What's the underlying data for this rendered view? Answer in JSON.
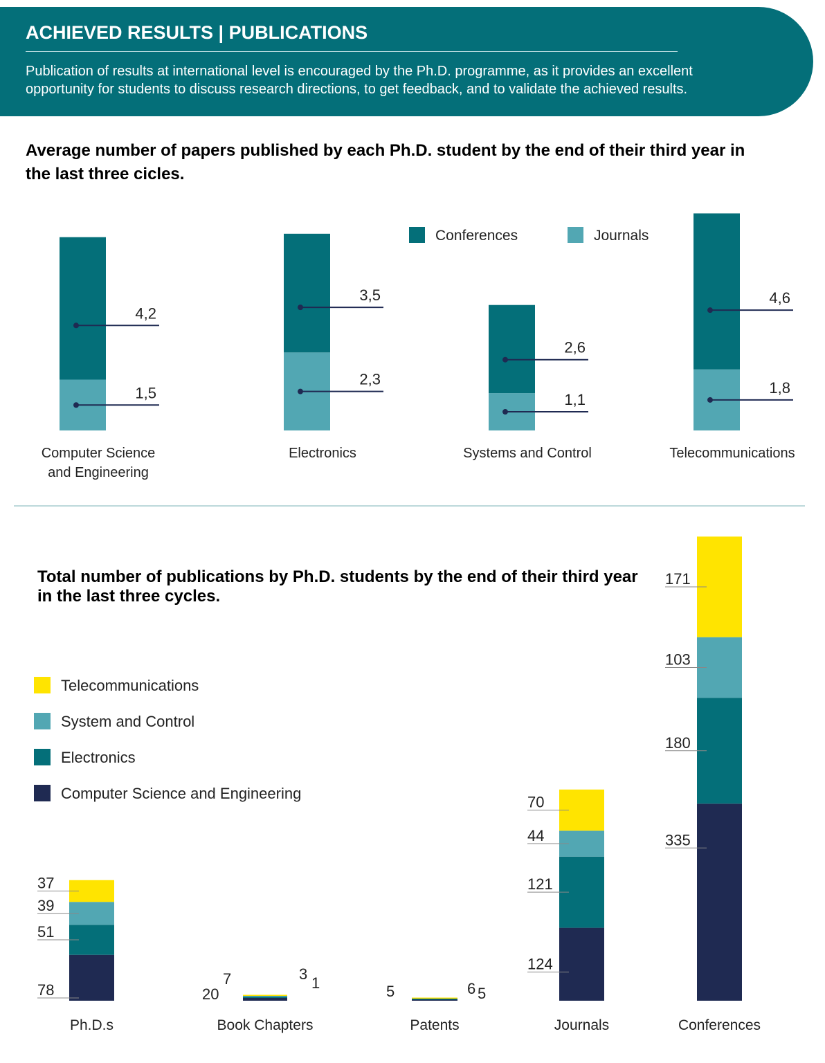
{
  "header": {
    "title": "ACHIEVED RESULTS | PUBLICATIONS",
    "description": "Publication of results at international level is encouraged by the Ph.D. programme, as it provides  an excellent opportunity for students to discuss research directions, to get feedback, and to validate the achieved results."
  },
  "colors": {
    "header": "#046f79",
    "conferences": "#046f79",
    "journals": "#52a7b3",
    "cse": "#1f2a52",
    "electronics": "#046f79",
    "system": "#52a7b3",
    "telecom": "#ffe400"
  },
  "chart_data": [
    {
      "type": "bar",
      "stacked": true,
      "title": "Average number of papers published by each Ph.D. student by the end of their third year in the last three cicles.",
      "categories": [
        "Computer Science and Engineering",
        "Electronics",
        "Systems and Control",
        "Telecommunications"
      ],
      "series": [
        {
          "name": "Journals",
          "values": [
            1.5,
            2.3,
            1.1,
            1.8
          ],
          "labels": [
            "1,5",
            "2,3",
            "1,1",
            "1,8"
          ]
        },
        {
          "name": "Conferences",
          "values": [
            4.2,
            3.5,
            2.6,
            4.6
          ],
          "labels": [
            "4,2",
            "3,5",
            "2,6",
            "4,6"
          ]
        }
      ],
      "legend": "top-right"
    },
    {
      "type": "bar",
      "stacked": true,
      "title": "Total number of publications by Ph.D. students by the end of their third year in the last three cycles.",
      "categories": [
        "Ph.D.s",
        "Book Chapters",
        "Patents",
        "Journals",
        "Conferences"
      ],
      "series": [
        {
          "name": "Computer Science and Engineering",
          "values": [
            78,
            20,
            5,
            124,
            335
          ]
        },
        {
          "name": "Electronics",
          "values": [
            51,
            1,
            5,
            121,
            180
          ]
        },
        {
          "name": "System and Control",
          "values": [
            39,
            7,
            0,
            44,
            103
          ]
        },
        {
          "name": "Telecommunications",
          "values": [
            37,
            3,
            6,
            70,
            171
          ]
        }
      ],
      "legend": "left"
    }
  ]
}
